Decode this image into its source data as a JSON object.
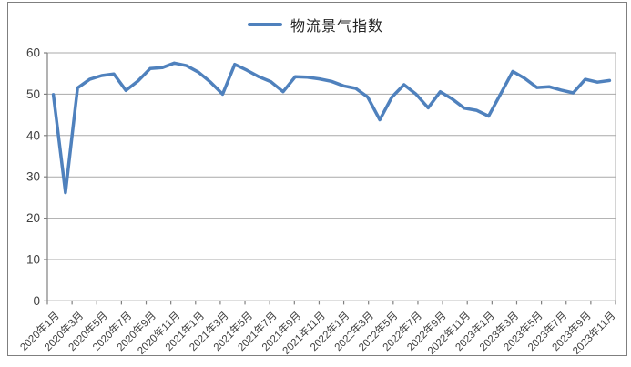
{
  "legend": {
    "label": "物流景气指数"
  },
  "colors": {
    "line": "#4F81BD",
    "grid": "#A9A9A9",
    "axis": "#808080",
    "tick_text": "#3F3F3F",
    "legend_text": "#262626",
    "frame_border": "#7F7F7F",
    "background": "#FFFFFF"
  },
  "chart_data": {
    "type": "line",
    "title": "",
    "legend_position": "top-center",
    "grid": true,
    "ylim": [
      0,
      60
    ],
    "ytick_step": 10,
    "ytick_labels": [
      "0",
      "10",
      "20",
      "30",
      "40",
      "50",
      "60"
    ],
    "xtick_every": 2,
    "x_tick_labels": [
      "2020年1月",
      "2020年3月",
      "2020年5月",
      "2020年7月",
      "2020年9月",
      "2020年11月",
      "2021年1月",
      "2021年3月",
      "2021年5月",
      "2021年7月",
      "2021年9月",
      "2021年11月",
      "2022年1月",
      "2022年3月",
      "2022年5月",
      "2022年7月",
      "2022年9月",
      "2022年11月",
      "2023年1月",
      "2023年3月",
      "2023年5月",
      "2023年7月",
      "2023年9月",
      "2023年11月"
    ],
    "categories": [
      "2020年1月",
      "2020年2月",
      "2020年3月",
      "2020年4月",
      "2020年5月",
      "2020年6月",
      "2020年7月",
      "2020年8月",
      "2020年9月",
      "2020年10月",
      "2020年11月",
      "2020年12月",
      "2021年1月",
      "2021年2月",
      "2021年3月",
      "2021年4月",
      "2021年5月",
      "2021年6月",
      "2021年7月",
      "2021年8月",
      "2021年9月",
      "2021年10月",
      "2021年11月",
      "2021年12月",
      "2022年1月",
      "2022年2月",
      "2022年3月",
      "2022年4月",
      "2022年5月",
      "2022年6月",
      "2022年7月",
      "2022年8月",
      "2022年9月",
      "2022年10月",
      "2022年11月",
      "2022年12月",
      "2023年1月",
      "2023年2月",
      "2023年3月",
      "2023年4月",
      "2023年5月",
      "2023年6月",
      "2023年7月",
      "2023年8月",
      "2023年9月",
      "2023年10月",
      "2023年11月"
    ],
    "series": [
      {
        "name": "物流景气指数",
        "color": "#4F81BD",
        "values": [
          49.9,
          26.2,
          51.5,
          53.6,
          54.5,
          54.9,
          50.9,
          53.2,
          56.2,
          56.4,
          57.5,
          56.9,
          55.3,
          52.9,
          50.0,
          57.2,
          55.8,
          54.2,
          53.0,
          50.6,
          54.2,
          54.1,
          53.7,
          53.1,
          52.0,
          51.4,
          49.3,
          43.8,
          49.3,
          52.3,
          50.0,
          46.7,
          50.6,
          48.8,
          46.6,
          46.1,
          44.7,
          50.1,
          55.5,
          53.8,
          51.6,
          51.8,
          51.0,
          50.3,
          53.6,
          52.9,
          53.3
        ]
      }
    ]
  }
}
